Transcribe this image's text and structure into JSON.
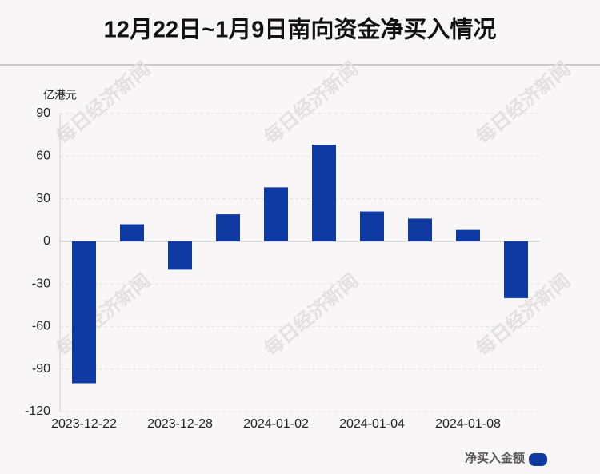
{
  "chart_data": {
    "type": "bar",
    "title": "12月22日~1月9日南向资金净买入情况",
    "y_label": "亿港元",
    "watermark": "每日经济新闻",
    "categories": [
      "2023-12-22",
      null,
      "2023-12-28",
      null,
      "2024-01-02",
      null,
      "2024-01-04",
      null,
      "2024-01-08",
      null
    ],
    "series": [
      {
        "name": "净买入金额",
        "color": "#0e3aa1",
        "values": [
          -100,
          12,
          -20,
          19,
          38,
          68,
          21,
          16,
          8,
          -40
        ]
      }
    ],
    "ylim": [
      -120,
      90
    ],
    "yticks": [
      -120,
      -90,
      -60,
      -30,
      0,
      30,
      60,
      90
    ],
    "grid": true
  }
}
